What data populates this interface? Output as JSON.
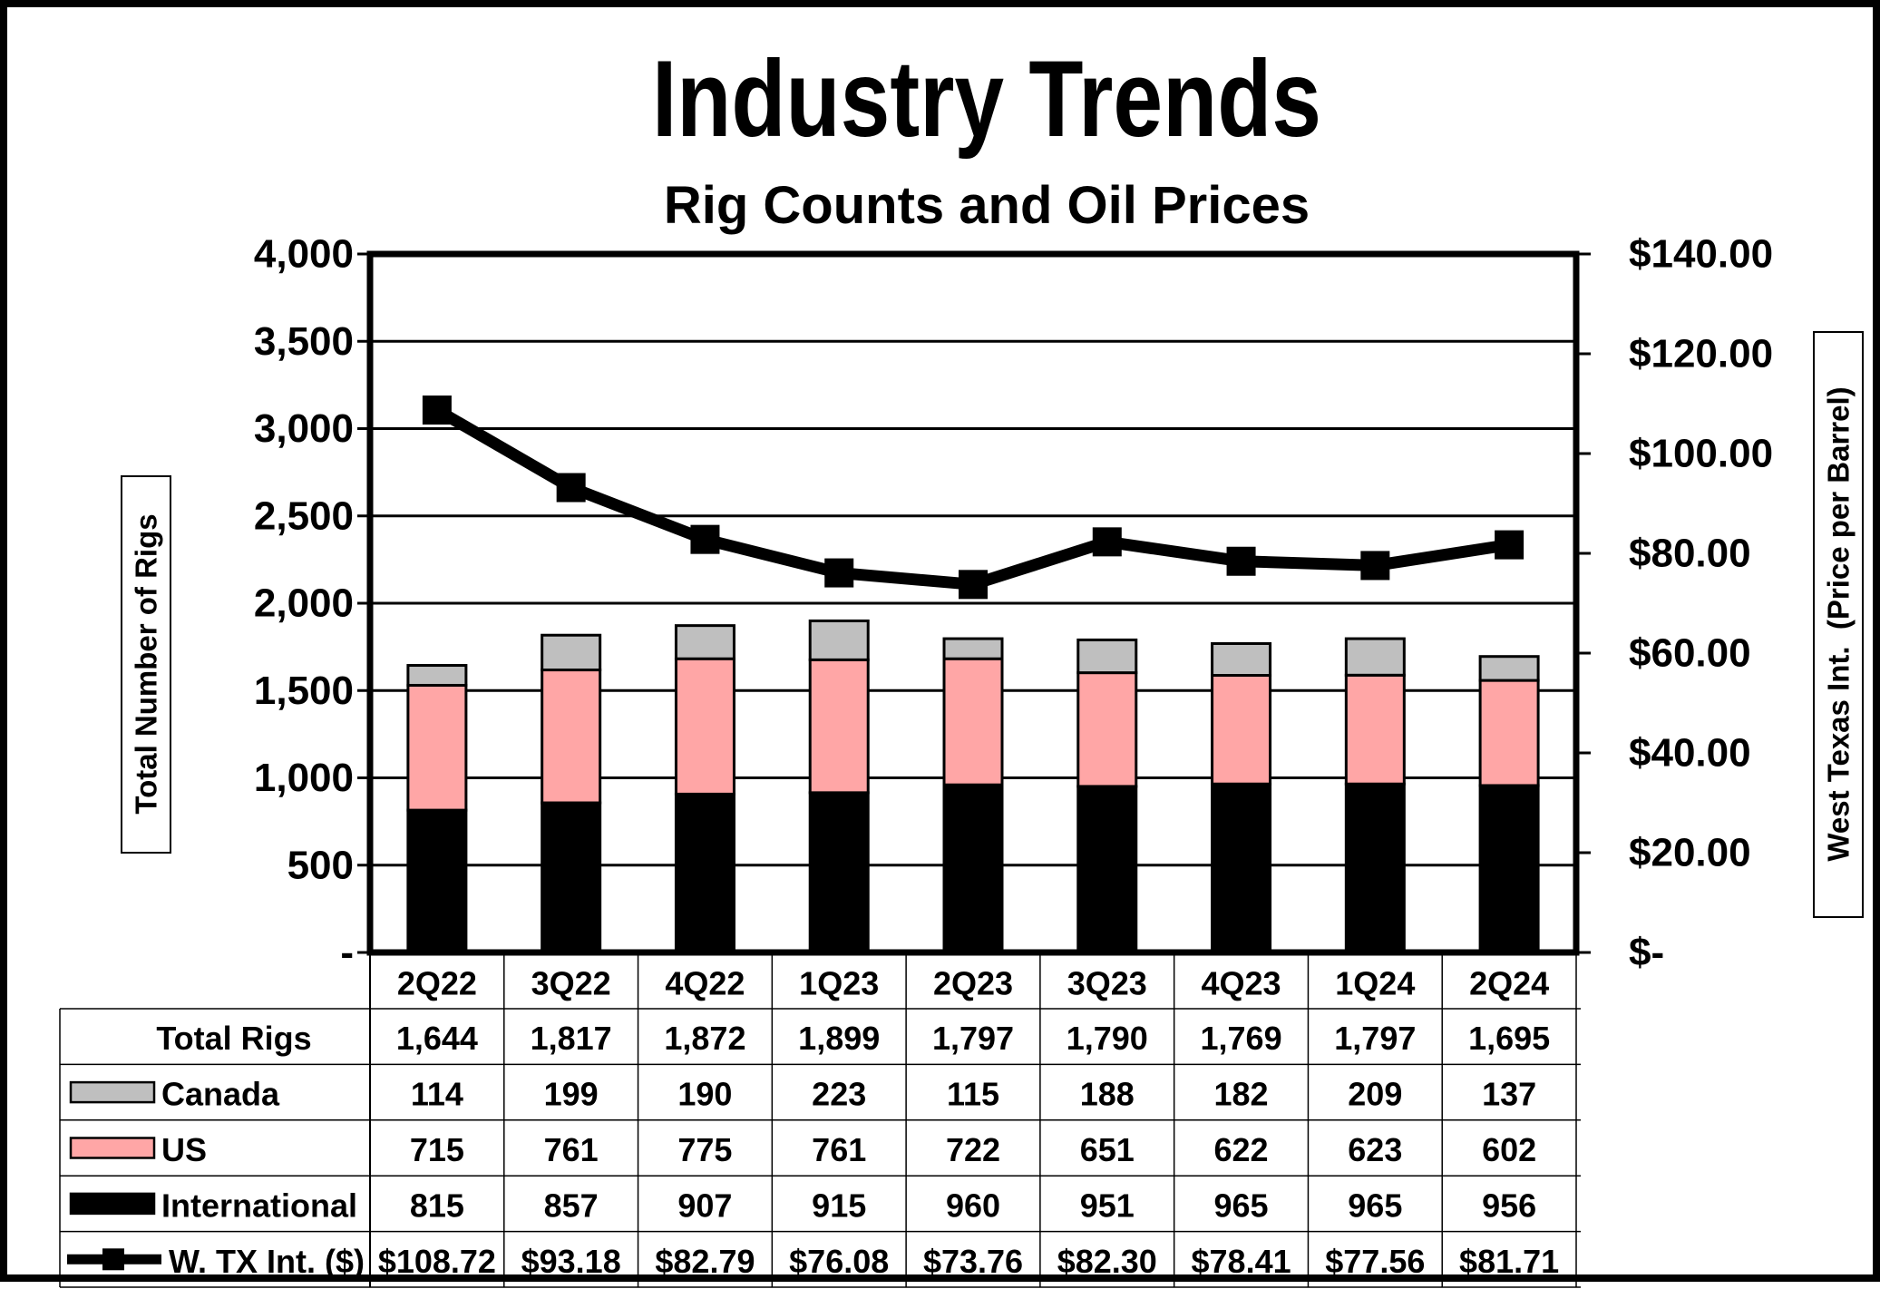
{
  "chart_data": {
    "type": "bar",
    "title": "Industry Trends",
    "subtitle": "Rig Counts and Oil Prices",
    "ylabel": "Total Number of Rigs",
    "y2label": "West Texas Int.  (Price per Barrel)",
    "ylim": [
      0,
      4000
    ],
    "y2lim": [
      0,
      140
    ],
    "y_ticks": [
      "-",
      "500",
      "1,000",
      "1,500",
      "2,000",
      "2,500",
      "3,000",
      "3,500",
      "4,000"
    ],
    "y2_ticks": [
      "$-",
      "$20.00",
      "$40.00",
      "$60.00",
      "$80.00",
      "$100.00",
      "$120.00",
      "$140.00"
    ],
    "grid": true,
    "categories": [
      "2Q22",
      "3Q22",
      "4Q22",
      "1Q23",
      "2Q23",
      "3Q23",
      "4Q23",
      "1Q24",
      "2Q24"
    ],
    "series": [
      {
        "name": "International",
        "kind": "bar",
        "color": "#000000",
        "values": [
          815,
          857,
          907,
          915,
          960,
          951,
          965,
          965,
          956
        ]
      },
      {
        "name": "US",
        "kind": "bar",
        "color": "#FFA6A6",
        "values": [
          715,
          761,
          775,
          761,
          722,
          651,
          622,
          623,
          602
        ]
      },
      {
        "name": "Canada",
        "kind": "bar",
        "color": "#BFBFBF",
        "values": [
          114,
          199,
          190,
          223,
          115,
          188,
          182,
          209,
          137
        ]
      },
      {
        "name": "W. TX Int. ($)",
        "kind": "line",
        "color": "#000000",
        "axis": "right",
        "values": [
          108.72,
          93.18,
          82.79,
          76.08,
          73.76,
          82.3,
          78.41,
          77.56,
          81.71
        ]
      }
    ],
    "table": {
      "rows": [
        {
          "label": "Total Rigs",
          "legend": "none",
          "cells": [
            "1,644",
            "1,817",
            "1,872",
            "1,899",
            "1,797",
            "1,790",
            "1,769",
            "1,797",
            "1,695"
          ]
        },
        {
          "label": "Canada",
          "legend": "#BFBFBF",
          "cells": [
            "114",
            "199",
            "190",
            "223",
            "115",
            "188",
            "182",
            "209",
            "137"
          ]
        },
        {
          "label": "US",
          "legend": "#FFA6A6",
          "cells": [
            "715",
            "761",
            "775",
            "761",
            "722",
            "651",
            "622",
            "623",
            "602"
          ]
        },
        {
          "label": "International",
          "legend": "#000000",
          "cells": [
            "815",
            "857",
            "907",
            "915",
            "960",
            "951",
            "965",
            "965",
            "956"
          ]
        },
        {
          "label": "W. TX Int. ($)",
          "legend": "line",
          "cells": [
            "$108.72",
            "$93.18",
            "$82.79",
            "$76.08",
            "$73.76",
            "$82.30",
            "$78.41",
            "$77.56",
            "$81.71"
          ]
        }
      ]
    }
  }
}
